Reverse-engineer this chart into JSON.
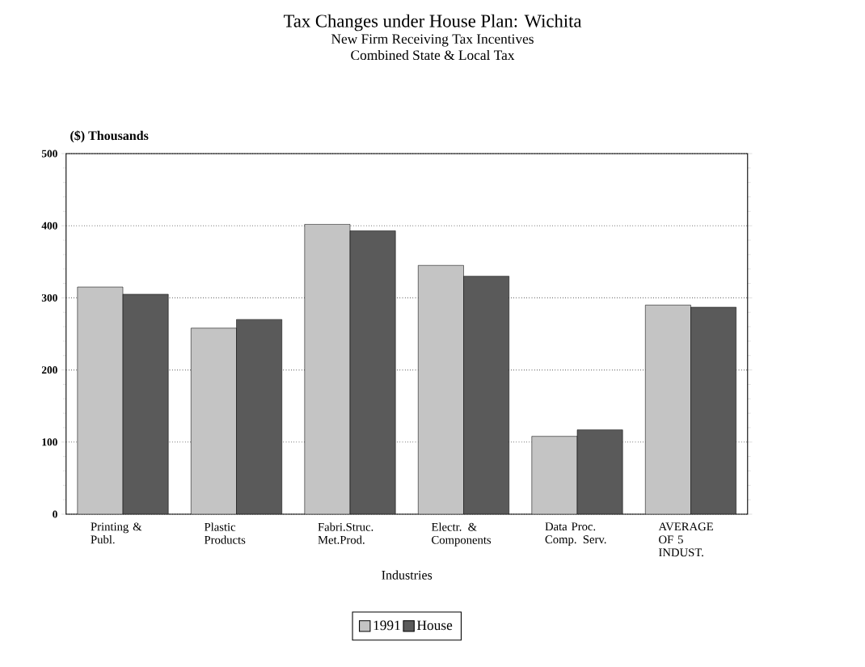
{
  "chart_data": {
    "type": "bar",
    "title": "Tax Changes under House Plan: Wichita",
    "subtitle": "New Firm Receiving Tax Incentives",
    "annotations": [
      "Combined State & Local Tax"
    ],
    "xlabel": "Industries",
    "ylabel": "($) Thousands",
    "categories": [
      "Printing & Publ.",
      "Plastic Products",
      "Fabri.Struc. Met.Prod.",
      "Electr. & Components",
      "Data Proc. Comp. Serv.",
      "AVERAGE OF 5 INDUST."
    ],
    "series": [
      {
        "name": "1991",
        "color": "#c4c4c4",
        "values": [
          315,
          258,
          402,
          345,
          108,
          290
        ]
      },
      {
        "name": "House",
        "color": "#5a5a5a",
        "values": [
          305,
          270,
          393,
          330,
          117,
          287
        ]
      }
    ],
    "ylim": [
      0,
      500
    ],
    "yticks": [
      0,
      100,
      200,
      300,
      400,
      500
    ],
    "grid": "y",
    "legend": "bottom"
  }
}
